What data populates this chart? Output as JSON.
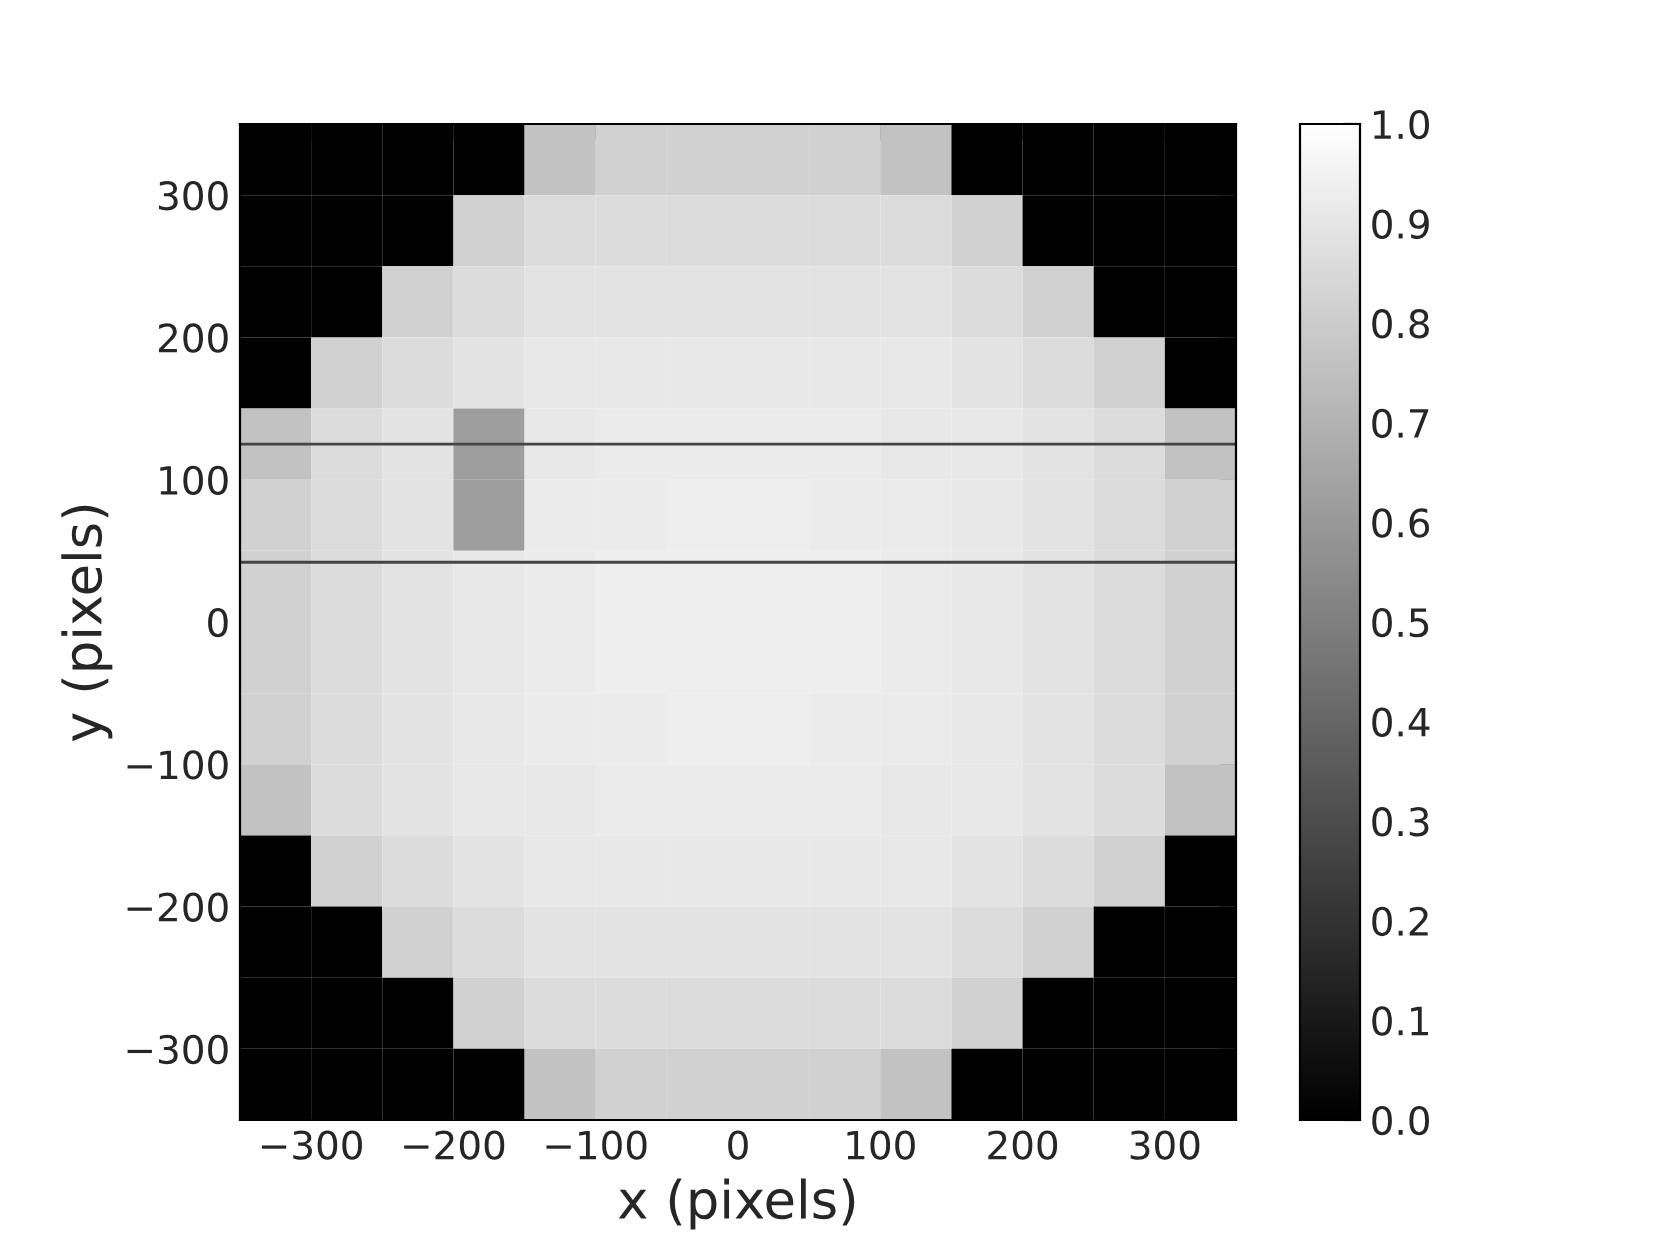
{
  "chart_data": {
    "type": "heatmap",
    "xlabel": "x (pixels)",
    "ylabel": "y (pixels)",
    "xlim": [
      -350,
      350
    ],
    "ylim": [
      -350,
      350
    ],
    "xticks": [
      {
        "value": -300,
        "label": "−300"
      },
      {
        "value": -200,
        "label": "−200"
      },
      {
        "value": -100,
        "label": "−100"
      },
      0,
      100,
      200,
      300
    ],
    "yticks": [
      {
        "value": -300,
        "label": "−300"
      },
      {
        "value": -200,
        "label": "−200"
      },
      {
        "value": -100,
        "label": "−100"
      },
      0,
      100,
      200,
      300
    ],
    "clim": [
      0,
      1
    ],
    "cticks": [
      {
        "value": 0,
        "label": "0.0"
      },
      {
        "value": 0.1,
        "label": "0.1"
      },
      {
        "value": 0.2,
        "label": "0.2"
      },
      {
        "value": 0.3,
        "label": "0.3"
      },
      {
        "value": 0.4,
        "label": "0.4"
      },
      {
        "value": 0.5,
        "label": "0.5"
      },
      {
        "value": 0.6,
        "label": "0.6"
      },
      {
        "value": 0.7,
        "label": "0.7"
      },
      {
        "value": 0.8,
        "label": "0.8"
      },
      {
        "value": 0.9,
        "label": "0.9"
      },
      {
        "value": 1,
        "label": "1.0"
      }
    ],
    "cells": [
      [
        0,
        0,
        0,
        0,
        0.76,
        0.82,
        0.82,
        0.82,
        0.82,
        0.76,
        0,
        0,
        0,
        0
      ],
      [
        0,
        0,
        0,
        0.82,
        0.86,
        0.86,
        0.86,
        0.86,
        0.86,
        0.86,
        0.82,
        0,
        0,
        0
      ],
      [
        0,
        0,
        0.82,
        0.86,
        0.89,
        0.89,
        0.89,
        0.89,
        0.89,
        0.89,
        0.86,
        0.82,
        0,
        0
      ],
      [
        0,
        0.82,
        0.86,
        0.89,
        0.91,
        0.91,
        0.91,
        0.91,
        0.91,
        0.91,
        0.89,
        0.86,
        0.82,
        0
      ],
      [
        0.76,
        0.86,
        0.89,
        0.62,
        0.91,
        0.92,
        0.92,
        0.92,
        0.92,
        0.91,
        0.91,
        0.89,
        0.86,
        0.76
      ],
      [
        0.82,
        0.86,
        0.89,
        0.62,
        0.92,
        0.92,
        0.93,
        0.93,
        0.92,
        0.92,
        0.91,
        0.89,
        0.86,
        0.82
      ],
      [
        0.82,
        0.86,
        0.89,
        0.91,
        0.92,
        0.93,
        0.93,
        0.93,
        0.93,
        0.92,
        0.91,
        0.89,
        0.86,
        0.82
      ],
      [
        0.82,
        0.86,
        0.89,
        0.91,
        0.92,
        0.93,
        0.93,
        0.93,
        0.93,
        0.92,
        0.91,
        0.89,
        0.86,
        0.82
      ],
      [
        0.82,
        0.86,
        0.89,
        0.91,
        0.92,
        0.92,
        0.93,
        0.93,
        0.92,
        0.92,
        0.91,
        0.89,
        0.86,
        0.82
      ],
      [
        0.76,
        0.86,
        0.89,
        0.91,
        0.91,
        0.92,
        0.92,
        0.92,
        0.92,
        0.91,
        0.91,
        0.89,
        0.86,
        0.76
      ],
      [
        0,
        0.82,
        0.86,
        0.89,
        0.91,
        0.91,
        0.91,
        0.91,
        0.91,
        0.91,
        0.89,
        0.86,
        0.82,
        0
      ],
      [
        0,
        0,
        0.82,
        0.86,
        0.89,
        0.89,
        0.89,
        0.89,
        0.89,
        0.89,
        0.86,
        0.82,
        0,
        0
      ],
      [
        0,
        0,
        0,
        0.82,
        0.86,
        0.86,
        0.86,
        0.86,
        0.86,
        0.86,
        0.82,
        0,
        0,
        0
      ],
      [
        0,
        0,
        0,
        0,
        0.76,
        0.82,
        0.82,
        0.82,
        0.82,
        0.76,
        0,
        0,
        0,
        0
      ]
    ],
    "ref_lines": [
      {
        "axis": "y",
        "value": 125,
        "color": "#444444"
      },
      {
        "axis": "y",
        "value": 42,
        "color": "#444444"
      }
    ]
  }
}
